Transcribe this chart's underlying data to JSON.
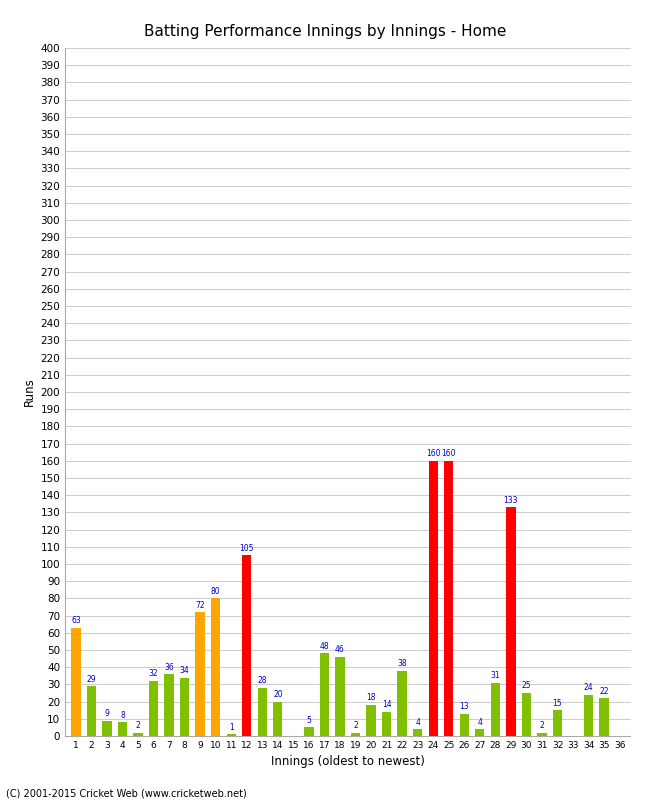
{
  "title": "Batting Performance Innings by Innings - Home",
  "xlabel": "Innings (oldest to newest)",
  "ylabel": "Runs",
  "values": [
    63,
    29,
    9,
    8,
    2,
    32,
    36,
    34,
    72,
    80,
    1,
    105,
    28,
    20,
    0,
    5,
    48,
    46,
    2,
    18,
    14,
    38,
    4,
    160,
    160,
    13,
    4,
    31,
    133,
    25,
    2,
    15,
    0,
    24,
    22,
    0
  ],
  "colors": [
    "orange",
    "limegreen",
    "limegreen",
    "limegreen",
    "limegreen",
    "limegreen",
    "limegreen",
    "limegreen",
    "orange",
    "orange",
    "limegreen",
    "red",
    "limegreen",
    "limegreen",
    "limegreen",
    "limegreen",
    "limegreen",
    "limegreen",
    "limegreen",
    "limegreen",
    "limegreen",
    "limegreen",
    "limegreen",
    "red",
    "red",
    "limegreen",
    "limegreen",
    "limegreen",
    "red",
    "limegreen",
    "limegreen",
    "limegreen",
    "limegreen",
    "limegreen",
    "limegreen",
    "limegreen"
  ],
  "ylim": [
    0,
    400
  ],
  "yticks": [
    0,
    10,
    20,
    30,
    40,
    50,
    60,
    70,
    80,
    90,
    100,
    110,
    120,
    130,
    140,
    150,
    160,
    170,
    180,
    190,
    200,
    210,
    220,
    230,
    240,
    250,
    260,
    270,
    280,
    290,
    300,
    310,
    320,
    330,
    340,
    350,
    360,
    370,
    380,
    390,
    400
  ],
  "bar_color_orange": "#FFA500",
  "bar_color_green": "#80C000",
  "bar_color_red": "#FF0000",
  "label_color": "#0000CC",
  "background_color": "#FFFFFF",
  "grid_color": "#CCCCCC",
  "footer": "(C) 2001-2015 Cricket Web (www.cricketweb.net)"
}
